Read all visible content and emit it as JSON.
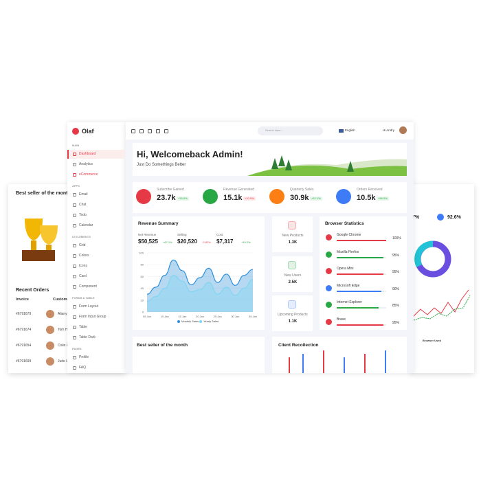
{
  "sidebar": {
    "brand": "Olaf",
    "sections": [
      {
        "heading": "MAIN",
        "items": [
          "Dashboard",
          "Analytics",
          "eCommerce"
        ]
      },
      {
        "heading": "APPS",
        "items": [
          "Email",
          "Chat",
          "Todo",
          "Calendar"
        ]
      },
      {
        "heading": "UI ELEMENTS",
        "items": [
          "Grid",
          "Colors",
          "Icons",
          "Card",
          "Component"
        ]
      },
      {
        "heading": "FORMS & TABLE",
        "items": [
          "Form Layout",
          "Form Input Group",
          "Table",
          "Table Dark"
        ]
      },
      {
        "heading": "PAGES",
        "items": [
          "Profile",
          "FAQ"
        ]
      }
    ]
  },
  "topbar": {
    "search_placeholder": "Search Here...",
    "language": "English",
    "greeting": "Hi Andry"
  },
  "welcome": {
    "title": "Hi, Welcomeback Admin!",
    "subtitle": "Just Do Somethings Better"
  },
  "stats": [
    {
      "label": "Subscribe Gained",
      "value": "23.7k",
      "change": "+30.0%"
    },
    {
      "label": "Revenue Generated",
      "value": "15.1k",
      "change": "+10.5%"
    },
    {
      "label": "Quarterly Sales",
      "value": "30.9k",
      "change": "+12.1%"
    },
    {
      "label": "Orders Received",
      "value": "10.5k",
      "change": "+56.0%"
    }
  ],
  "revenue": {
    "title": "Revenue Summary",
    "metrics": [
      {
        "label": "Net Revenue",
        "value": "$50,525",
        "change": "+67.1%"
      },
      {
        "label": "Selling",
        "value": "$20,520",
        "change": "-2.82%"
      },
      {
        "label": "Cost",
        "value": "$7,317",
        "change": "+10.2%"
      }
    ]
  },
  "chart_data": {
    "type": "area",
    "categories": [
      "05 Jan",
      null,
      "10 Jan",
      null,
      "15 Jan",
      null,
      "20 Jan",
      null,
      "25 Jan",
      null,
      "30 Jan",
      null,
      "35 Jan"
    ],
    "series": [
      {
        "name": "Monthly Sales",
        "color": "#2e8fd8",
        "values": [
          30,
          42,
          62,
          88,
          70,
          46,
          58,
          74,
          50,
          64,
          45,
          62,
          72
        ]
      },
      {
        "name": "Yearly Sales",
        "color": "#7fd6f2",
        "values": [
          18,
          26,
          40,
          62,
          52,
          34,
          38,
          50,
          30,
          42,
          28,
          40,
          55
        ]
      }
    ],
    "ylim": [
      0,
      100
    ],
    "yticks": [
      0,
      20,
      40,
      60,
      80,
      100
    ],
    "grid": true
  },
  "mini_cards": [
    {
      "label": "New Products",
      "value": "1.3K"
    },
    {
      "label": "New Users",
      "value": "2.5K"
    },
    {
      "label": "Upcoming Products",
      "value": "1.1K"
    }
  ],
  "browser_stats": {
    "title": "Browser Statistics",
    "items": [
      {
        "name": "Google Chrome",
        "value": 100,
        "label": "100%"
      },
      {
        "name": "Mozilla Firefox",
        "value": 95,
        "label": "95%"
      },
      {
        "name": "Opera Mini",
        "value": 95,
        "label": "95%"
      },
      {
        "name": "Microsoft Edge",
        "value": 90,
        "label": "90%"
      },
      {
        "name": "Internet Explorer",
        "value": 85,
        "label": "85%"
      },
      {
        "name": "Brave",
        "value": 95,
        "label": "95%"
      }
    ]
  },
  "bottom": {
    "best_seller": "Best seller of the month",
    "client": "Client Recollection"
  },
  "back_left": {
    "best_seller": "Best seller of the month",
    "orders_title": "Recent Orders",
    "columns": [
      "Invoice",
      "Customer"
    ],
    "rows": [
      [
        "#6791679",
        "Aliany"
      ],
      [
        "#6791674",
        "Tom H"
      ],
      [
        "#6791654",
        "Colin F"
      ],
      [
        "#6791699",
        "Jude L"
      ]
    ]
  },
  "back_right": {
    "stats": [
      "7%",
      "92.6%"
    ],
    "browser_used": "Browser Used"
  }
}
